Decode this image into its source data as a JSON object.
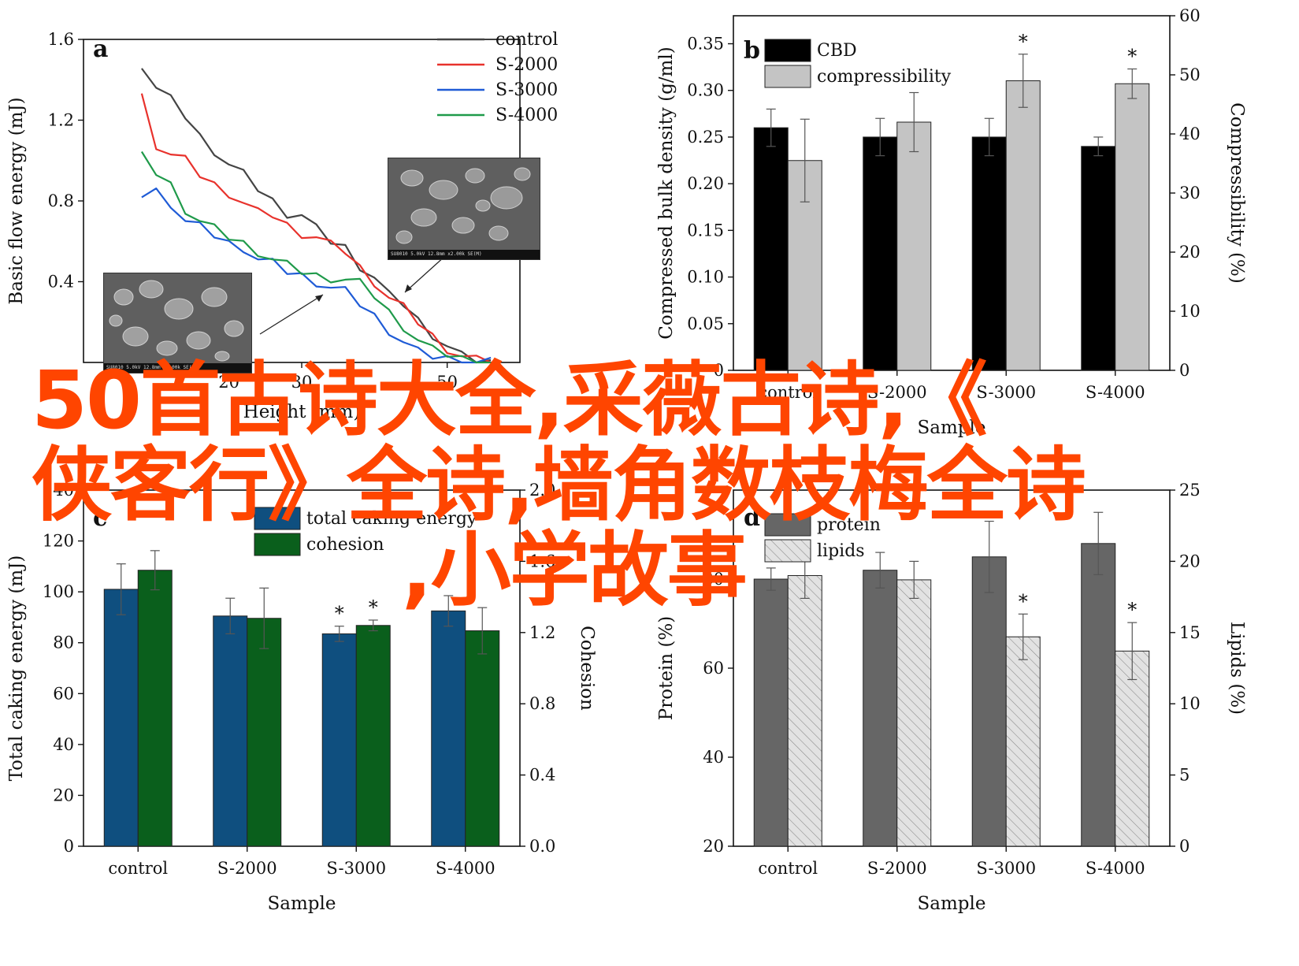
{
  "overlay": {
    "line1": "50首古诗大全,采薇古诗,《",
    "line2": "侠客行》全诗,墙角数枝梅全诗",
    "line3": ",小学故事"
  },
  "sem_insets": [
    {
      "caption": "SU8010 5.0kV 12.8mm x2.00k SE(M)"
    },
    {
      "caption": "SU8010 5.0kV 12.8mm x2.00k SE(M)"
    }
  ],
  "chart_data": [
    {
      "panel": "a",
      "type": "line",
      "xlabel": "Height (mm)",
      "ylabel": "Basic flow energy (mJ)",
      "xlim": [
        0,
        60
      ],
      "ylim": [
        0,
        1.6
      ],
      "xticks": [
        "20",
        "30",
        "50"
      ],
      "yticks": [
        "0.4",
        "0.8",
        "1.2",
        "1.6"
      ],
      "legend_position": "top-right",
      "series": [
        {
          "name": "control",
          "color": "#444444",
          "x": [
            8,
            10,
            12,
            14,
            16,
            18,
            20,
            22,
            24,
            26,
            28,
            30,
            32,
            34,
            36,
            38,
            40,
            42,
            44,
            46,
            48,
            50,
            52,
            54,
            56
          ],
          "y": [
            1.48,
            1.36,
            1.3,
            1.22,
            1.12,
            1.05,
            0.98,
            0.93,
            0.86,
            0.8,
            0.74,
            0.73,
            0.66,
            0.6,
            0.57,
            0.48,
            0.42,
            0.33,
            0.29,
            0.21,
            0.14,
            0.08,
            0.03,
            0.01,
            0.0
          ]
        },
        {
          "name": "S-2000",
          "color": "#e8322c",
          "x": [
            8,
            10,
            12,
            14,
            16,
            18,
            20,
            22,
            24,
            26,
            28,
            30,
            32,
            34,
            36,
            38,
            40,
            42,
            44,
            46,
            48,
            50,
            52,
            54,
            56
          ],
          "y": [
            1.32,
            1.08,
            1.03,
            1.0,
            0.93,
            0.88,
            0.84,
            0.79,
            0.74,
            0.73,
            0.68,
            0.64,
            0.62,
            0.58,
            0.55,
            0.47,
            0.4,
            0.32,
            0.27,
            0.2,
            0.13,
            0.07,
            0.03,
            0.01,
            0.0
          ]
        },
        {
          "name": "S-3000",
          "color": "#1f5bd6",
          "x": [
            8,
            10,
            12,
            14,
            16,
            18,
            20,
            22,
            24,
            26,
            28,
            30,
            32,
            34,
            36,
            38,
            40,
            42,
            44,
            46,
            48,
            50,
            52,
            54,
            56
          ],
          "y": [
            0.83,
            0.85,
            0.79,
            0.7,
            0.67,
            0.63,
            0.59,
            0.57,
            0.51,
            0.49,
            0.45,
            0.43,
            0.4,
            0.37,
            0.35,
            0.29,
            0.23,
            0.16,
            0.1,
            0.05,
            0.03,
            0.02,
            0.01,
            0.0,
            0.0
          ]
        },
        {
          "name": "S-4000",
          "color": "#1f9a4a",
          "x": [
            8,
            10,
            12,
            14,
            16,
            18,
            20,
            22,
            24,
            26,
            28,
            30,
            32,
            34,
            36,
            38,
            40,
            42,
            44,
            46,
            48,
            50,
            52,
            54,
            56
          ],
          "y": [
            1.02,
            0.94,
            0.88,
            0.76,
            0.7,
            0.66,
            0.62,
            0.59,
            0.55,
            0.51,
            0.48,
            0.45,
            0.43,
            0.42,
            0.41,
            0.39,
            0.33,
            0.25,
            0.18,
            0.11,
            0.06,
            0.04,
            0.02,
            0.01,
            0.0
          ]
        }
      ]
    },
    {
      "panel": "b",
      "type": "bar",
      "xlabel": "Sample",
      "ylabel": "Compressed bulk density (g/ml)",
      "ylabel_right": "Compressibility (%)",
      "categories": [
        "control",
        "S-2000",
        "S-3000",
        "S-4000"
      ],
      "ylim": [
        0,
        0.38
      ],
      "ylim_right": [
        0,
        60
      ],
      "yticks": [
        "0",
        "0.05",
        "0.10",
        "0.15",
        "0.20",
        "0.25",
        "0.30",
        "0.35"
      ],
      "yticks_right": [
        "0",
        "10",
        "20",
        "30",
        "40",
        "50",
        "60"
      ],
      "legend_position": "top-left",
      "series": [
        {
          "name": "CBD",
          "axis": "left",
          "color": "#000000",
          "values": [
            0.26,
            0.25,
            0.25,
            0.24
          ],
          "errors": [
            0.02,
            0.02,
            0.02,
            0.01
          ],
          "significance": [
            "",
            "",
            "",
            ""
          ]
        },
        {
          "name": "compressibility",
          "axis": "right",
          "color": "#c4c4c4",
          "values": [
            35.5,
            42,
            49,
            48.5
          ],
          "errors": [
            7,
            5,
            4.5,
            2.5
          ],
          "significance": [
            "",
            "",
            "*",
            "*"
          ]
        }
      ]
    },
    {
      "panel": "c",
      "type": "bar",
      "xlabel": "Sample",
      "ylabel": "Total caking energy (mJ)",
      "ylabel_right": "Cohesion",
      "categories": [
        "control",
        "S-2000",
        "S-3000",
        "S-4000"
      ],
      "ylim": [
        0,
        140
      ],
      "ylim_right": [
        0,
        2.0
      ],
      "yticks": [
        "0",
        "20",
        "40",
        "60",
        "80",
        "100",
        "120",
        "140"
      ],
      "yticks_right": [
        "0.0",
        "0.4",
        "0.8",
        "1.2",
        "1.6",
        "2.0"
      ],
      "legend_position": "top-center",
      "series": [
        {
          "name": "total caking energy",
          "axis": "left",
          "color": "#0f4f7f",
          "values": [
            101,
            90.5,
            83.5,
            92.5
          ],
          "errors": [
            10,
            7,
            3,
            6
          ],
          "significance": [
            "",
            "",
            "*",
            ""
          ]
        },
        {
          "name": "cohesion",
          "axis": "right",
          "color": "#0a5f1c",
          "values": [
            1.55,
            1.28,
            1.24,
            1.21
          ],
          "errors": [
            0.11,
            0.17,
            0.03,
            0.13
          ],
          "significance": [
            "",
            "",
            "*",
            ""
          ]
        }
      ]
    },
    {
      "panel": "d",
      "type": "bar",
      "xlabel": "Sample",
      "ylabel": "Protein (%)",
      "ylabel_right": "Lipids (%)",
      "categories": [
        "control",
        "S-2000",
        "S-3000",
        "S-4000"
      ],
      "ylim": [
        20,
        100
      ],
      "ylim_right": [
        0,
        25
      ],
      "yticks": [
        "20",
        "40",
        "60",
        "80"
      ],
      "yticks_right": [
        "0",
        "5",
        "10",
        "15",
        "20",
        "25"
      ],
      "legend_position": "top-left",
      "series": [
        {
          "name": "protein",
          "axis": "left",
          "color": "#666666",
          "values": [
            80,
            82,
            85,
            88
          ],
          "errors": [
            2.5,
            4,
            8,
            7
          ],
          "significance": [
            "",
            "",
            "",
            ""
          ]
        },
        {
          "name": "lipids",
          "axis": "right",
          "color": "#dcdcdc",
          "values": [
            19,
            18.7,
            14.7,
            13.7
          ],
          "errors": [
            1.6,
            1.3,
            1.6,
            2
          ],
          "significance": [
            "",
            "",
            "*",
            "*"
          ]
        }
      ]
    }
  ]
}
